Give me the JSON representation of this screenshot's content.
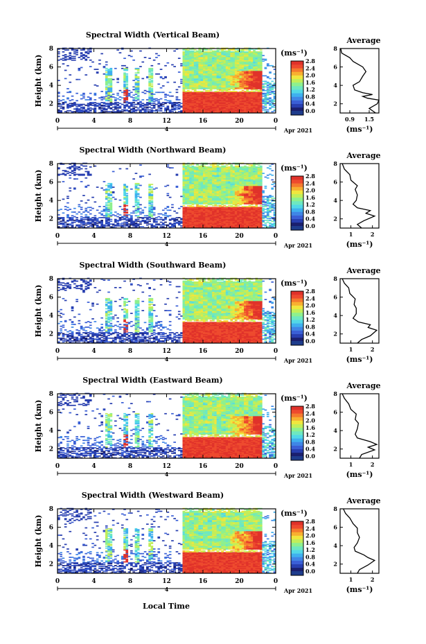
{
  "figure": {
    "x_axis_label": "Local Time",
    "date_label": "Apr 2021",
    "date_day_label": "4",
    "unit_label": "(ms⁻¹)",
    "average_title": "Average",
    "average_xlabel": "(ms⁻¹)"
  },
  "colormap": {
    "colors": [
      "#1a1f6e",
      "#283fb0",
      "#3a5fd6",
      "#3f86e6",
      "#3fb0ee",
      "#52d8e6",
      "#6ee8c0",
      "#8ef08e",
      "#c2ee5a",
      "#f0e63e",
      "#f8b030",
      "#f57a2e",
      "#ee4a2e",
      "#e0322a"
    ],
    "baseline_color": "#1e3c8c"
  },
  "chart_data": [
    {
      "type": "heatmap",
      "title": "Spectral Width (Vertical Beam)",
      "ylabel": "Height (km)",
      "xlabel": "Local Time",
      "xlim": [
        0,
        24
      ],
      "xticks": [
        "0",
        "4",
        "8",
        "12",
        "16",
        "20",
        "0"
      ],
      "ylim": [
        1,
        8
      ],
      "yticks": [
        "2",
        "4",
        "6",
        "8"
      ],
      "colorbar": {
        "ticks": [
          "2.8",
          "2.4",
          "2.0",
          "1.6",
          "1.2",
          "0.8",
          "0.4",
          "0.0"
        ],
        "range": [
          0,
          2.8
        ]
      },
      "average": {
        "xlim": [
          0.6,
          1.8
        ],
        "xticks": [
          "0.9",
          "1.5"
        ],
        "ylim": [
          1,
          8
        ],
        "yticks": [
          "2",
          "4",
          "6",
          "8"
        ],
        "profile": [
          [
            1.7,
            1.0
          ],
          [
            1.5,
            1.5
          ],
          [
            1.75,
            2.0
          ],
          [
            1.8,
            2.4
          ],
          [
            1.45,
            2.6
          ],
          [
            1.3,
            2.8
          ],
          [
            1.6,
            3.0
          ],
          [
            1.3,
            3.2
          ],
          [
            1.05,
            3.5
          ],
          [
            1.0,
            4.0
          ],
          [
            1.2,
            4.4
          ],
          [
            1.3,
            5.0
          ],
          [
            1.4,
            5.5
          ],
          [
            1.3,
            6.0
          ],
          [
            1.0,
            6.6
          ],
          [
            0.9,
            7.0
          ],
          [
            0.65,
            7.5
          ],
          [
            0.62,
            8.0
          ]
        ]
      }
    },
    {
      "type": "heatmap",
      "title": "Spectral Width (Northward Beam)",
      "ylabel": "Height (km)",
      "xlabel": "Local Time",
      "xlim": [
        0,
        24
      ],
      "xticks": [
        "0",
        "4",
        "8",
        "12",
        "16",
        "20",
        "0"
      ],
      "ylim": [
        1,
        8
      ],
      "yticks": [
        "2",
        "4",
        "6",
        "8"
      ],
      "colorbar": {
        "ticks": [
          "2.8",
          "2.4",
          "2.0",
          "1.6",
          "1.2",
          "0.8",
          "0.4",
          "0.0"
        ],
        "range": [
          0,
          2.8
        ]
      },
      "average": {
        "xlim": [
          0.5,
          2.3
        ],
        "xticks": [
          "1",
          "2"
        ],
        "ylim": [
          1,
          8
        ],
        "yticks": [
          "2",
          "4",
          "6",
          "8"
        ],
        "profile": [
          [
            1.5,
            1.0
          ],
          [
            1.3,
            1.4
          ],
          [
            1.6,
            1.8
          ],
          [
            2.1,
            2.3
          ],
          [
            1.7,
            2.6
          ],
          [
            1.9,
            2.9
          ],
          [
            1.3,
            3.2
          ],
          [
            1.1,
            3.6
          ],
          [
            1.25,
            4.0
          ],
          [
            1.3,
            4.6
          ],
          [
            1.2,
            5.2
          ],
          [
            1.3,
            5.6
          ],
          [
            1.0,
            6.2
          ],
          [
            0.95,
            6.8
          ],
          [
            0.7,
            7.4
          ],
          [
            0.6,
            8.0
          ]
        ]
      }
    },
    {
      "type": "heatmap",
      "title": "Spectral Width (Southward Beam)",
      "ylabel": "Height (km)",
      "xlabel": "Local Time",
      "xlim": [
        0,
        24
      ],
      "xticks": [
        "0",
        "4",
        "8",
        "12",
        "16",
        "20",
        "0"
      ],
      "ylim": [
        1,
        8
      ],
      "yticks": [
        "2",
        "4",
        "6",
        "8"
      ],
      "colorbar": {
        "ticks": [
          "2.8",
          "2.4",
          "2.0",
          "1.6",
          "1.2",
          "0.8",
          "0.4",
          "0.0"
        ],
        "range": [
          0,
          2.8
        ]
      },
      "average": {
        "xlim": [
          0.5,
          2.3
        ],
        "xticks": [
          "1",
          "2"
        ],
        "ylim": [
          1,
          8
        ],
        "yticks": [
          "2",
          "4",
          "6",
          "8"
        ],
        "profile": [
          [
            1.3,
            1.0
          ],
          [
            1.5,
            1.4
          ],
          [
            1.9,
            1.8
          ],
          [
            2.2,
            2.4
          ],
          [
            1.8,
            2.7
          ],
          [
            1.9,
            3.0
          ],
          [
            1.35,
            3.3
          ],
          [
            1.1,
            3.7
          ],
          [
            1.25,
            4.2
          ],
          [
            1.25,
            4.8
          ],
          [
            1.15,
            5.2
          ],
          [
            1.2,
            5.8
          ],
          [
            0.95,
            6.4
          ],
          [
            0.9,
            7.0
          ],
          [
            0.7,
            7.5
          ],
          [
            0.6,
            8.0
          ]
        ]
      }
    },
    {
      "type": "heatmap",
      "title": "Spectral Width (Eastward Beam)",
      "ylabel": "Height (km)",
      "xlabel": "Local Time",
      "xlim": [
        0,
        24
      ],
      "xticks": [
        "0",
        "4",
        "8",
        "12",
        "16",
        "20",
        "0"
      ],
      "ylim": [
        1,
        8
      ],
      "yticks": [
        "2",
        "4",
        "6",
        "8"
      ],
      "colorbar": {
        "ticks": [
          "2.8",
          "2.4",
          "2.0",
          "1.6",
          "1.2",
          "0.8",
          "0.4",
          "0.0"
        ],
        "range": [
          0,
          2.8
        ]
      },
      "average": {
        "xlim": [
          0.5,
          2.3
        ],
        "xticks": [
          "1",
          "2"
        ],
        "ylim": [
          1,
          8
        ],
        "yticks": [
          "2",
          "4",
          "6",
          "8"
        ],
        "profile": [
          [
            1.4,
            1.0
          ],
          [
            1.5,
            1.4
          ],
          [
            2.1,
            1.9
          ],
          [
            1.8,
            2.2
          ],
          [
            2.2,
            2.5
          ],
          [
            1.9,
            2.8
          ],
          [
            1.3,
            3.2
          ],
          [
            1.2,
            3.6
          ],
          [
            1.3,
            4.2
          ],
          [
            1.35,
            4.8
          ],
          [
            1.2,
            5.2
          ],
          [
            1.25,
            5.8
          ],
          [
            1.0,
            6.3
          ],
          [
            0.9,
            6.9
          ],
          [
            0.7,
            7.5
          ],
          [
            0.6,
            8.0
          ]
        ]
      }
    },
    {
      "type": "heatmap",
      "title": "Spectral Width (Westward Beam)",
      "ylabel": "Height (km)",
      "xlabel": "Local Time",
      "xlim": [
        0,
        24
      ],
      "xticks": [
        "0",
        "4",
        "8",
        "12",
        "16",
        "20",
        "0"
      ],
      "ylim": [
        1,
        8
      ],
      "yticks": [
        "2",
        "4",
        "6",
        "8"
      ],
      "colorbar": {
        "ticks": [
          "2.8",
          "2.4",
          "2.0",
          "1.6",
          "1.2",
          "0.8",
          "0.4",
          "0.0"
        ],
        "range": [
          0,
          2.8
        ]
      },
      "average": {
        "xlim": [
          0.5,
          2.3
        ],
        "xticks": [
          "1",
          "2"
        ],
        "ylim": [
          1,
          8
        ],
        "yticks": [
          "2",
          "4",
          "6",
          "8"
        ],
        "profile": [
          [
            1.3,
            1.0
          ],
          [
            1.4,
            1.4
          ],
          [
            1.8,
            1.9
          ],
          [
            2.1,
            2.4
          ],
          [
            1.8,
            2.7
          ],
          [
            1.6,
            3.0
          ],
          [
            1.2,
            3.4
          ],
          [
            1.15,
            3.8
          ],
          [
            1.3,
            4.3
          ],
          [
            1.4,
            4.9
          ],
          [
            1.3,
            5.4
          ],
          [
            1.3,
            5.9
          ],
          [
            1.1,
            6.4
          ],
          [
            0.95,
            7.0
          ],
          [
            0.75,
            7.5
          ],
          [
            0.65,
            8.0
          ]
        ]
      }
    }
  ]
}
